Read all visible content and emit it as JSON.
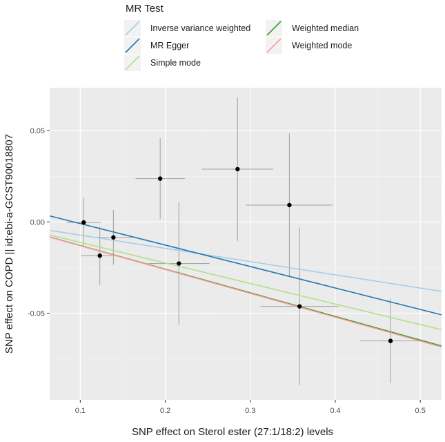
{
  "chart_data": {
    "type": "scatter",
    "legend_title": "MR Test",
    "legend_position": "top",
    "xlabel": "SNP effect on Sterol ester (27:1/18:2) levels",
    "ylabel": "SNP effect on COPD || id:ebi-a-GCST90018807",
    "xlim": [
      0.064,
      0.525
    ],
    "ylim": [
      -0.0975,
      0.0735
    ],
    "x_ticks": [
      0.1,
      0.2,
      0.3,
      0.4,
      0.5
    ],
    "x_tick_labels": [
      "0.1",
      "0.2",
      "0.3",
      "0.4",
      "0.5"
    ],
    "y_ticks": [
      -0.05,
      0.0,
      0.05
    ],
    "y_tick_labels": [
      "-0.05",
      "0.00",
      "0.05"
    ],
    "grid": true,
    "points": [
      {
        "x": 0.104,
        "y": -0.0003,
        "xerr": 0.02,
        "yerr": 0.0135
      },
      {
        "x": 0.123,
        "y": -0.0185,
        "xerr": 0.022,
        "yerr": 0.016
      },
      {
        "x": 0.139,
        "y": -0.0085,
        "xerr": 0.022,
        "yerr": 0.015
      },
      {
        "x": 0.194,
        "y": 0.0237,
        "xerr": 0.029,
        "yerr": 0.0222
      },
      {
        "x": 0.216,
        "y": -0.0228,
        "xerr": 0.036,
        "yerr": 0.0336
      },
      {
        "x": 0.285,
        "y": 0.0289,
        "xerr": 0.042,
        "yerr": 0.0393
      },
      {
        "x": 0.346,
        "y": 0.0092,
        "xerr": 0.051,
        "yerr": 0.0393
      },
      {
        "x": 0.358,
        "y": -0.0463,
        "xerr": 0.046,
        "yerr": 0.0432
      },
      {
        "x": 0.465,
        "y": -0.0652,
        "xerr": 0.036,
        "yerr": 0.0231
      }
    ],
    "series": [
      {
        "name": "Inverse variance weighted",
        "color": "#a6cee3",
        "intercept": 0.0,
        "slope": -0.0725
      },
      {
        "name": "MR Egger",
        "color": "#1f78b4",
        "intercept": 0.0108,
        "slope": -0.1175
      },
      {
        "name": "Simple mode",
        "color": "#b2df8a",
        "intercept": 0.0,
        "slope": -0.1125
      },
      {
        "name": "Weighted median",
        "color": "#33a02c",
        "intercept": 0.0,
        "slope": -0.1295
      },
      {
        "name": "Weighted mode",
        "color": "#fb9a99",
        "intercept": 0.0,
        "slope": -0.1305
      }
    ]
  }
}
